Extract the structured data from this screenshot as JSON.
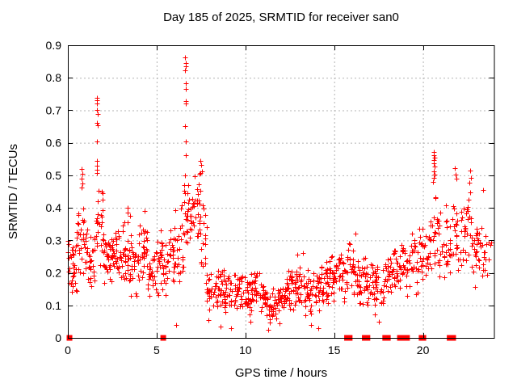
{
  "chart_data": {
    "type": "scatter",
    "title": "Day 185 of 2025, SRMTID for receiver san0",
    "xlabel": "GPS time / hours",
    "ylabel": "SRMTID / TECUs",
    "marker": "plus",
    "marker_color": "#ff0000",
    "grid": true,
    "grid_color": "#b3b3b3",
    "axis_color": "#000000",
    "background": "#ffffff",
    "xlim": [
      0,
      24
    ],
    "ylim": [
      0,
      0.9
    ],
    "x_tick_values": [
      0,
      5,
      10,
      15,
      20
    ],
    "x_tick_labels": [
      "0",
      "5",
      "10",
      "15",
      "20"
    ],
    "y_tick_values": [
      0,
      0.1,
      0.2,
      0.3,
      0.4,
      0.5,
      0.6,
      0.7,
      0.8,
      0.9
    ],
    "y_tick_labels": [
      "0",
      "0.1",
      "0.2",
      "0.3",
      "0.4",
      "0.5",
      "0.6",
      "0.7",
      "0.8",
      "0.9"
    ],
    "seed": 185,
    "band_bins": [
      [
        0.0,
        0.5,
        30,
        0.13,
        0.33
      ],
      [
        0.5,
        1.0,
        28,
        0.16,
        0.44
      ],
      [
        1.0,
        1.5,
        28,
        0.14,
        0.38
      ],
      [
        1.5,
        2.0,
        30,
        0.17,
        0.48
      ],
      [
        2.0,
        2.5,
        32,
        0.15,
        0.34
      ],
      [
        2.5,
        3.0,
        32,
        0.17,
        0.34
      ],
      [
        3.0,
        3.5,
        30,
        0.14,
        0.38
      ],
      [
        3.5,
        4.0,
        28,
        0.1,
        0.33
      ],
      [
        4.0,
        4.5,
        30,
        0.15,
        0.385
      ],
      [
        4.5,
        5.0,
        24,
        0.1,
        0.3
      ],
      [
        5.0,
        5.5,
        28,
        0.1,
        0.36
      ],
      [
        5.5,
        6.0,
        28,
        0.12,
        0.37
      ],
      [
        6.0,
        6.5,
        26,
        0.15,
        0.45
      ],
      [
        6.5,
        7.0,
        28,
        0.25,
        0.5
      ],
      [
        7.0,
        7.5,
        30,
        0.3,
        0.52
      ],
      [
        7.5,
        7.8,
        16,
        0.12,
        0.42
      ],
      [
        7.8,
        8.3,
        24,
        0.06,
        0.22
      ],
      [
        8.3,
        8.8,
        28,
        0.08,
        0.23
      ],
      [
        8.8,
        9.3,
        28,
        0.07,
        0.2
      ],
      [
        9.3,
        9.8,
        28,
        0.08,
        0.22
      ],
      [
        9.8,
        10.3,
        28,
        0.07,
        0.21
      ],
      [
        10.3,
        10.8,
        28,
        0.08,
        0.24
      ],
      [
        10.8,
        11.3,
        28,
        0.06,
        0.19
      ],
      [
        11.3,
        11.8,
        28,
        0.04,
        0.16
      ],
      [
        11.8,
        12.3,
        28,
        0.05,
        0.18
      ],
      [
        12.3,
        12.8,
        28,
        0.07,
        0.22
      ],
      [
        12.8,
        13.3,
        28,
        0.09,
        0.27
      ],
      [
        13.3,
        13.8,
        28,
        0.06,
        0.23
      ],
      [
        13.8,
        14.3,
        28,
        0.07,
        0.23
      ],
      [
        14.3,
        14.8,
        28,
        0.1,
        0.25
      ],
      [
        14.8,
        15.3,
        28,
        0.1,
        0.28
      ],
      [
        15.3,
        15.8,
        26,
        0.08,
        0.28
      ],
      [
        15.8,
        16.3,
        26,
        0.1,
        0.33
      ],
      [
        16.3,
        16.8,
        26,
        0.08,
        0.28
      ],
      [
        16.8,
        17.3,
        26,
        0.07,
        0.26
      ],
      [
        17.3,
        17.8,
        26,
        0.07,
        0.25
      ],
      [
        17.8,
        18.3,
        26,
        0.1,
        0.28
      ],
      [
        18.3,
        18.8,
        26,
        0.12,
        0.3
      ],
      [
        18.8,
        19.3,
        26,
        0.12,
        0.34
      ],
      [
        19.3,
        19.8,
        24,
        0.12,
        0.35
      ],
      [
        19.8,
        20.3,
        24,
        0.14,
        0.34
      ],
      [
        20.3,
        20.8,
        22,
        0.17,
        0.45
      ],
      [
        20.8,
        21.3,
        22,
        0.15,
        0.42
      ],
      [
        21.3,
        21.8,
        24,
        0.17,
        0.46
      ],
      [
        21.8,
        22.3,
        24,
        0.15,
        0.43
      ],
      [
        22.3,
        22.8,
        24,
        0.18,
        0.46
      ],
      [
        22.8,
        23.3,
        24,
        0.15,
        0.4
      ],
      [
        23.3,
        23.85,
        16,
        0.17,
        0.35
      ]
    ],
    "spike_points": [
      [
        0.78,
        0.52
      ],
      [
        0.8,
        0.505
      ],
      [
        0.76,
        0.49
      ],
      [
        0.82,
        0.475
      ],
      [
        0.79,
        0.462
      ],
      [
        1.62,
        0.738
      ],
      [
        1.66,
        0.73
      ],
      [
        1.64,
        0.72
      ],
      [
        1.63,
        0.7
      ],
      [
        1.67,
        0.688
      ],
      [
        1.62,
        0.662
      ],
      [
        1.68,
        0.655
      ],
      [
        1.65,
        0.603
      ],
      [
        1.63,
        0.545
      ],
      [
        1.66,
        0.53
      ],
      [
        1.64,
        0.517
      ],
      [
        1.62,
        0.508
      ],
      [
        3.35,
        0.4
      ],
      [
        3.38,
        0.385
      ],
      [
        4.3,
        0.39
      ],
      [
        6.6,
        0.862
      ],
      [
        6.62,
        0.846
      ],
      [
        6.64,
        0.835
      ],
      [
        6.61,
        0.824
      ],
      [
        6.63,
        0.782
      ],
      [
        6.65,
        0.766
      ],
      [
        6.62,
        0.728
      ],
      [
        6.66,
        0.72
      ],
      [
        6.6,
        0.651
      ],
      [
        6.64,
        0.605
      ],
      [
        6.63,
        0.562
      ],
      [
        6.58,
        0.5
      ],
      [
        6.56,
        0.47
      ],
      [
        7.45,
        0.545
      ],
      [
        7.5,
        0.532
      ],
      [
        7.55,
        0.512
      ],
      [
        20.6,
        0.572
      ],
      [
        20.62,
        0.562
      ],
      [
        20.64,
        0.555
      ],
      [
        20.63,
        0.546
      ],
      [
        20.61,
        0.536
      ],
      [
        20.65,
        0.527
      ],
      [
        20.6,
        0.512
      ],
      [
        20.66,
        0.502
      ],
      [
        20.62,
        0.492
      ],
      [
        20.58,
        0.48
      ],
      [
        21.8,
        0.522
      ],
      [
        21.85,
        0.502
      ],
      [
        21.9,
        0.49
      ],
      [
        22.65,
        0.515
      ],
      [
        22.7,
        0.492
      ],
      [
        22.6,
        0.478
      ],
      [
        23.4,
        0.455
      ]
    ],
    "low_points": [
      [
        6.1,
        0.04
      ],
      [
        7.9,
        0.055
      ],
      [
        8.6,
        0.035
      ],
      [
        9.2,
        0.03
      ],
      [
        10.3,
        0.05
      ],
      [
        11.3,
        0.025
      ],
      [
        11.9,
        0.045
      ],
      [
        13.7,
        0.04
      ],
      [
        14.1,
        0.03
      ],
      [
        17.5,
        0.05
      ]
    ],
    "zero_markers": [
      0.07,
      5.35,
      15.7,
      15.85,
      16.7,
      16.85,
      17.85,
      18.0,
      18.68,
      18.78,
      18.88,
      18.98,
      19.08,
      19.9,
      20.0,
      21.48,
      21.58,
      21.68
    ]
  }
}
